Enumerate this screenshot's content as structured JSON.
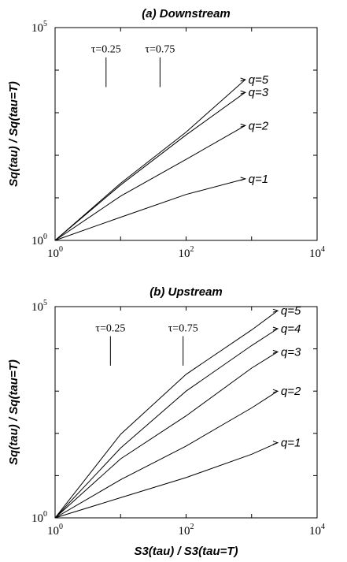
{
  "chart_data": [
    {
      "type": "line",
      "title": "(a)  Downstream",
      "xlabel": "",
      "ylabel": "Sq(tau) / Sq(tau=T)",
      "xscale": "log",
      "yscale": "log",
      "xlim": [
        1,
        10000
      ],
      "ylim": [
        1,
        100000
      ],
      "x_ticks": [
        {
          "base": "10",
          "exp": "0",
          "value": 1
        },
        {
          "base": "10",
          "exp": "2",
          "value": 100
        },
        {
          "base": "10",
          "exp": "4",
          "value": 10000
        }
      ],
      "y_ticks": [
        {
          "base": "10",
          "exp": "0",
          "value": 1
        },
        {
          "base": "10",
          "exp": "5",
          "value": 100000
        }
      ],
      "annotations": [
        {
          "text": "τ=0.25",
          "x": 6,
          "y_top": 20000,
          "y_bottom": 4000
        },
        {
          "text": "τ=0.75",
          "x": 40,
          "y_top": 20000,
          "y_bottom": 4000
        }
      ],
      "series": [
        {
          "name": "q=1",
          "x": [
            1,
            10,
            100,
            800
          ],
          "y": [
            1,
            3.5,
            12,
            28
          ]
        },
        {
          "name": "q=2",
          "x": [
            1,
            10,
            100,
            800
          ],
          "y": [
            1,
            11,
            80,
            500
          ]
        },
        {
          "name": "q=3",
          "x": [
            1,
            10,
            100,
            800
          ],
          "y": [
            1,
            20,
            300,
            3000
          ]
        },
        {
          "name": "q=5",
          "x": [
            1,
            10,
            100,
            800
          ],
          "y": [
            1,
            22,
            350,
            6000
          ]
        }
      ]
    },
    {
      "type": "line",
      "title": "(b)  Upstream",
      "xlabel": "S3(tau) / S3(tau=T)",
      "ylabel": "Sq(tau) / Sq(tau=T)",
      "xscale": "log",
      "yscale": "log",
      "xlim": [
        1,
        10000
      ],
      "ylim": [
        1,
        100000
      ],
      "x_ticks": [
        {
          "base": "10",
          "exp": "0",
          "value": 1
        },
        {
          "base": "10",
          "exp": "2",
          "value": 100
        },
        {
          "base": "10",
          "exp": "4",
          "value": 10000
        }
      ],
      "y_ticks": [
        {
          "base": "10",
          "exp": "0",
          "value": 1
        },
        {
          "base": "10",
          "exp": "5",
          "value": 100000
        }
      ],
      "annotations": [
        {
          "text": "τ=0.25",
          "x": 7,
          "y_top": 20000,
          "y_bottom": 4000
        },
        {
          "text": "τ=0.75",
          "x": 90,
          "y_top": 20000,
          "y_bottom": 4000
        }
      ],
      "series": [
        {
          "name": "q=1",
          "x": [
            1,
            10,
            100,
            1000,
            2500
          ],
          "y": [
            1,
            3,
            9,
            32,
            60
          ]
        },
        {
          "name": "q=2",
          "x": [
            1,
            10,
            100,
            1000,
            2500
          ],
          "y": [
            1,
            8,
            50,
            400,
            1000
          ]
        },
        {
          "name": "q=3",
          "x": [
            1,
            10,
            100,
            1000,
            2500
          ],
          "y": [
            1,
            25,
            260,
            3500,
            8500
          ]
        },
        {
          "name": "q=4",
          "x": [
            1,
            10,
            100,
            1000,
            2500
          ],
          "y": [
            1,
            45,
            1000,
            12000,
            30000
          ]
        },
        {
          "name": "q=5",
          "x": [
            1,
            10,
            100,
            1000,
            2500
          ],
          "y": [
            1,
            95,
            2500,
            28000,
            80000
          ]
        }
      ]
    }
  ]
}
